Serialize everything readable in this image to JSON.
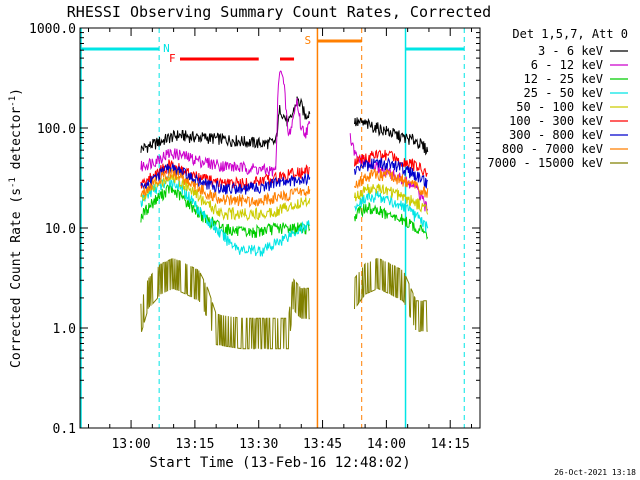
{
  "chart_data": {
    "type": "line",
    "title": "RHESSI Observing Summary Count Rates, Corrected",
    "xlabel": "Start Time (13-Feb-16 12:48:02)",
    "ylabel": "Corrected Count Rate (s⁻¹ detector⁻¹)",
    "ylabel_parts": [
      "Corrected Count Rate (s",
      "-1",
      " detector",
      "-1",
      ")"
    ],
    "yscale": "log",
    "ylim": [
      0.1,
      1000.0
    ],
    "xlim_minutes": [
      48.0,
      142.0
    ],
    "ytick_labels": [
      "0.1",
      "1.0",
      "10.0",
      "100.0",
      "1000.0"
    ],
    "ytick_values": [
      0.1,
      1.0,
      10.0,
      100.0,
      1000.0
    ],
    "xtick_labels": [
      "13:00",
      "13:15",
      "13:30",
      "13:45",
      "14:00",
      "14:15"
    ],
    "xtick_minutes": [
      60,
      75,
      90,
      105,
      120,
      135
    ],
    "legend_title": "Det 1,5,7, Att 0",
    "legend_position": "right",
    "timestamp": "26-Oct-2021 13:18",
    "colors": {
      "night": "#00e5e5",
      "flare": "#ff0000",
      "saa": "#ff7f00"
    },
    "series": [
      {
        "name": "3 - 6 keV",
        "color": "#000000",
        "seg1": [
          [
            62.3,
            62
          ],
          [
            65,
            68
          ],
          [
            69,
            80
          ],
          [
            71,
            85
          ],
          [
            74,
            82
          ],
          [
            78,
            80
          ],
          [
            82,
            77
          ],
          [
            86,
            74
          ],
          [
            88,
            72
          ],
          [
            91,
            70
          ],
          [
            94,
            72
          ],
          [
            95,
            160
          ],
          [
            96,
            130
          ],
          [
            97,
            110
          ],
          [
            98,
            140
          ],
          [
            99,
            190
          ],
          [
            100,
            170
          ],
          [
            101,
            130
          ],
          [
            102,
            150
          ]
        ],
        "seg2": [
          [
            112.5,
            115
          ],
          [
            115,
            110
          ],
          [
            118,
            100
          ],
          [
            121,
            90
          ],
          [
            124,
            80
          ],
          [
            127,
            75
          ],
          [
            129.7,
            60
          ]
        ]
      },
      {
        "name": "6 - 12 keV",
        "color": "#cc00cc",
        "seg1": [
          [
            62.3,
            41
          ],
          [
            65,
            46
          ],
          [
            69,
            56
          ],
          [
            71,
            55
          ],
          [
            74,
            50
          ],
          [
            78,
            45
          ],
          [
            82,
            42
          ],
          [
            86,
            40
          ],
          [
            88,
            40
          ],
          [
            91,
            38
          ],
          [
            94,
            37
          ],
          [
            94.5,
            200
          ],
          [
            95,
            450
          ],
          [
            96,
            250
          ],
          [
            97,
            80
          ],
          [
            98,
            120
          ],
          [
            99,
            190
          ],
          [
            100,
            100
          ],
          [
            101,
            90
          ],
          [
            102,
            110
          ]
        ],
        "seg2": [
          [
            111.5,
            80
          ],
          [
            112,
            65
          ],
          [
            113,
            50
          ],
          [
            115,
            45
          ],
          [
            118,
            40
          ],
          [
            121,
            35
          ],
          [
            124,
            30
          ],
          [
            127,
            25
          ],
          [
            129.7,
            15
          ]
        ]
      },
      {
        "name": "12 - 25 keV",
        "color": "#00cc00",
        "seg1": [
          [
            62.3,
            13
          ],
          [
            65,
            18
          ],
          [
            69,
            25
          ],
          [
            71,
            22
          ],
          [
            74,
            17
          ],
          [
            78,
            12
          ],
          [
            82,
            10
          ],
          [
            86,
            9
          ],
          [
            88,
            9
          ],
          [
            91,
            9.5
          ],
          [
            94,
            10
          ],
          [
            96,
            10
          ],
          [
            98,
            10
          ],
          [
            100,
            10
          ],
          [
            102,
            10
          ]
        ],
        "seg2": [
          [
            112.5,
            13
          ],
          [
            115,
            16
          ],
          [
            118,
            15
          ],
          [
            121,
            13
          ],
          [
            124,
            12
          ],
          [
            127,
            10
          ],
          [
            129.7,
            9
          ]
        ]
      },
      {
        "name": "25 - 50 keV",
        "color": "#00e5e5",
        "seg1": [
          [
            62.3,
            18
          ],
          [
            65,
            24
          ],
          [
            69,
            30
          ],
          [
            71,
            27
          ],
          [
            74,
            20
          ],
          [
            78,
            12
          ],
          [
            82,
            8
          ],
          [
            86,
            6
          ],
          [
            88,
            6
          ],
          [
            91,
            6
          ],
          [
            94,
            7
          ],
          [
            96,
            8
          ],
          [
            98,
            9
          ],
          [
            100,
            10
          ],
          [
            102,
            11
          ]
        ],
        "seg2": [
          [
            112.5,
            16
          ],
          [
            115,
            20
          ],
          [
            118,
            21
          ],
          [
            121,
            19
          ],
          [
            124,
            16
          ],
          [
            127,
            13
          ],
          [
            129.7,
            10
          ]
        ]
      },
      {
        "name": "50 - 100 keV",
        "color": "#cccc00",
        "seg1": [
          [
            62.3,
            20
          ],
          [
            65,
            25
          ],
          [
            69,
            33
          ],
          [
            71,
            31
          ],
          [
            74,
            25
          ],
          [
            78,
            17
          ],
          [
            82,
            14
          ],
          [
            86,
            14
          ],
          [
            88,
            14
          ],
          [
            91,
            14
          ],
          [
            94,
            15
          ],
          [
            96,
            16
          ],
          [
            98,
            17
          ],
          [
            100,
            18
          ],
          [
            102,
            19
          ]
        ],
        "seg2": [
          [
            112.5,
            20
          ],
          [
            115,
            24
          ],
          [
            118,
            25
          ],
          [
            121,
            23
          ],
          [
            124,
            21
          ],
          [
            127,
            18
          ],
          [
            129.7,
            15
          ]
        ]
      },
      {
        "name": "100 - 300 keV",
        "color": "#ff0000",
        "seg1": [
          [
            62.3,
            27
          ],
          [
            65,
            33
          ],
          [
            69,
            43
          ],
          [
            71,
            40
          ],
          [
            74,
            34
          ],
          [
            78,
            30
          ],
          [
            82,
            28
          ],
          [
            86,
            28
          ],
          [
            88,
            28
          ],
          [
            91,
            30
          ],
          [
            94,
            32
          ],
          [
            96,
            33
          ],
          [
            98,
            35
          ],
          [
            100,
            36
          ],
          [
            102,
            38
          ]
        ],
        "seg2": [
          [
            112.5,
            45
          ],
          [
            115,
            50
          ],
          [
            118,
            55
          ],
          [
            121,
            52
          ],
          [
            124,
            47
          ],
          [
            127,
            42
          ],
          [
            129.7,
            34
          ]
        ]
      },
      {
        "name": "300 - 800 keV",
        "color": "#0000cc",
        "seg1": [
          [
            62.3,
            25
          ],
          [
            65,
            30
          ],
          [
            69,
            40
          ],
          [
            71,
            38
          ],
          [
            74,
            32
          ],
          [
            78,
            27
          ],
          [
            82,
            25
          ],
          [
            86,
            25
          ],
          [
            88,
            25
          ],
          [
            91,
            26
          ],
          [
            94,
            28
          ],
          [
            96,
            29
          ],
          [
            98,
            30
          ],
          [
            100,
            31
          ],
          [
            102,
            32
          ]
        ],
        "seg2": [
          [
            112.5,
            38
          ],
          [
            115,
            42
          ],
          [
            118,
            45
          ],
          [
            121,
            43
          ],
          [
            124,
            39
          ],
          [
            127,
            34
          ],
          [
            129.7,
            28
          ]
        ]
      },
      {
        "name": "800 - 7000 keV",
        "color": "#ff7f00",
        "seg1": [
          [
            62.3,
            22
          ],
          [
            65,
            28
          ],
          [
            69,
            36
          ],
          [
            71,
            34
          ],
          [
            74,
            28
          ],
          [
            78,
            22
          ],
          [
            82,
            19
          ],
          [
            86,
            19
          ],
          [
            88,
            19
          ],
          [
            91,
            19
          ],
          [
            94,
            20
          ],
          [
            96,
            21
          ],
          [
            98,
            22
          ],
          [
            100,
            23
          ],
          [
            102,
            24
          ]
        ],
        "seg2": [
          [
            112.5,
            28
          ],
          [
            115,
            32
          ],
          [
            118,
            35
          ],
          [
            121,
            33
          ],
          [
            124,
            30
          ],
          [
            127,
            26
          ],
          [
            129.7,
            22
          ]
        ]
      },
      {
        "name": "7000 - 15000 keV",
        "color": "#808000",
        "seg1": [
          [
            62.3,
            1.4
          ],
          [
            64,
            2.5
          ],
          [
            67,
            3.5
          ],
          [
            70,
            4
          ],
          [
            73,
            3.5
          ],
          [
            76,
            3
          ],
          [
            78,
            2
          ],
          [
            80,
            1.1
          ],
          [
            86,
            1
          ],
          [
            92,
            1
          ],
          [
            97,
            1
          ],
          [
            98,
            2.5
          ],
          [
            100,
            2
          ],
          [
            102,
            2
          ]
        ],
        "seg2": [
          [
            112.5,
            2.5
          ],
          [
            115,
            3.5
          ],
          [
            118,
            4
          ],
          [
            121,
            3.5
          ],
          [
            124,
            3
          ],
          [
            127,
            1.5
          ],
          [
            129.7,
            1.5
          ]
        ]
      }
    ],
    "night_intervals_minutes": [
      [
        48.0,
        66.6
      ],
      [
        124.5,
        138.3
      ]
    ],
    "night_label": "N",
    "flare_intervals_minutes": [
      [
        71.5,
        90.0
      ],
      [
        95.0,
        98.3
      ]
    ],
    "flare_label": "F",
    "saa_interval_minutes": [
      103.8,
      114.2
    ],
    "saa_label": "S"
  }
}
